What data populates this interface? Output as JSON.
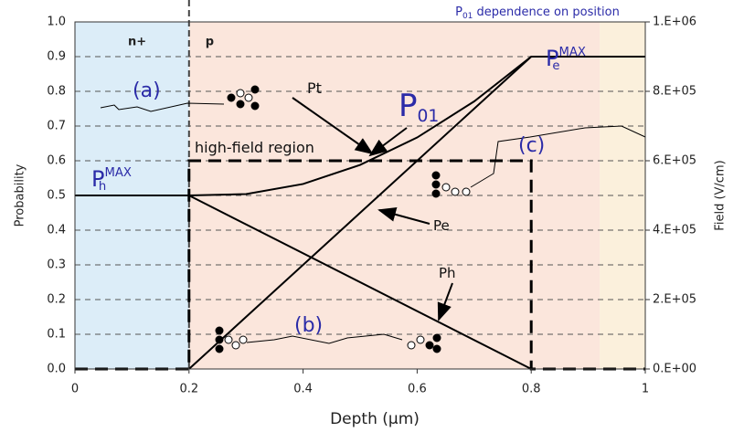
{
  "chart_data": {
    "type": "line",
    "title": {
      "text": "P",
      "sub": "01",
      "rest": " dependence on position"
    },
    "x_label": "Depth (µm)",
    "y_label": "Probability",
    "y2_label": "Field (V/cm)",
    "xlim": [
      0,
      1
    ],
    "xticks": [
      0,
      0.2,
      0.4,
      0.6,
      0.8,
      1
    ],
    "ylim": [
      0,
      1
    ],
    "yticks": [
      {
        "value": 0,
        "label": "0.0"
      },
      {
        "value": 0.1,
        "label": "0.1"
      },
      {
        "value": 0.2,
        "label": "0.2"
      },
      {
        "value": 0.3,
        "label": "0.3"
      },
      {
        "value": 0.4,
        "label": "0.4"
      },
      {
        "value": 0.5,
        "label": "0.5"
      },
      {
        "value": 0.6,
        "label": "0.6"
      },
      {
        "value": 0.7,
        "label": "0.7"
      },
      {
        "value": 0.8,
        "label": "0.8"
      },
      {
        "value": 0.9,
        "label": "0.9"
      },
      {
        "value": 1,
        "label": "1.0"
      }
    ],
    "y2lim": [
      0,
      1000000
    ],
    "y2ticks": [
      {
        "value": 0,
        "label": "0.E+00"
      },
      {
        "value": 200000,
        "label": "2.E+05"
      },
      {
        "value": 400000,
        "label": "4.E+05"
      },
      {
        "value": 600000,
        "label": "6.E+05"
      },
      {
        "value": 800000,
        "label": "8.E+05"
      },
      {
        "value": 1000000,
        "label": "1.E+06"
      }
    ],
    "grid": true,
    "regions": [
      {
        "label": "n+",
        "x": [
          0,
          0.2
        ],
        "color": "#dcedf8"
      },
      {
        "label": "p",
        "x": [
          0.2,
          0.92
        ],
        "color": "#fbe6dc"
      },
      {
        "x": [
          0.92,
          1
        ],
        "color": "#fbf0dc"
      }
    ],
    "series": [
      {
        "name": "Pt",
        "color": "#000000",
        "x": [
          0.2,
          0.3,
          0.4,
          0.5,
          0.6,
          0.7,
          0.8
        ],
        "values": [
          0.5,
          0.504,
          0.533,
          0.588,
          0.667,
          0.771,
          0.9
        ]
      },
      {
        "name": "Pe",
        "color": "#000000",
        "x": [
          0.2,
          0.8,
          1
        ],
        "values": [
          0,
          0.9,
          0.9
        ]
      },
      {
        "name": "Ph",
        "color": "#000000",
        "x": [
          0,
          0.2,
          0.8
        ],
        "values": [
          0.5,
          0.5,
          0
        ]
      },
      {
        "name": "Field",
        "color": "#000000",
        "dashed": true,
        "axis": "y2",
        "x": [
          0,
          0.2,
          0.2,
          0.8,
          0.8,
          1
        ],
        "values": [
          0,
          0,
          600000,
          600000,
          0,
          0
        ]
      }
    ],
    "annotations": [
      {
        "text": "(a)"
      },
      {
        "text": "(b)"
      },
      {
        "text": "(c)"
      },
      {
        "text": "Pt"
      },
      {
        "text": "P",
        "sub": "01"
      },
      {
        "text": "Pe"
      },
      {
        "text": "Ph"
      },
      {
        "text": "high-field region"
      },
      {
        "text": "P",
        "sub": "h",
        "sup": "MAX"
      },
      {
        "text": "P",
        "sub": "e",
        "sup": "MAX"
      }
    ]
  }
}
